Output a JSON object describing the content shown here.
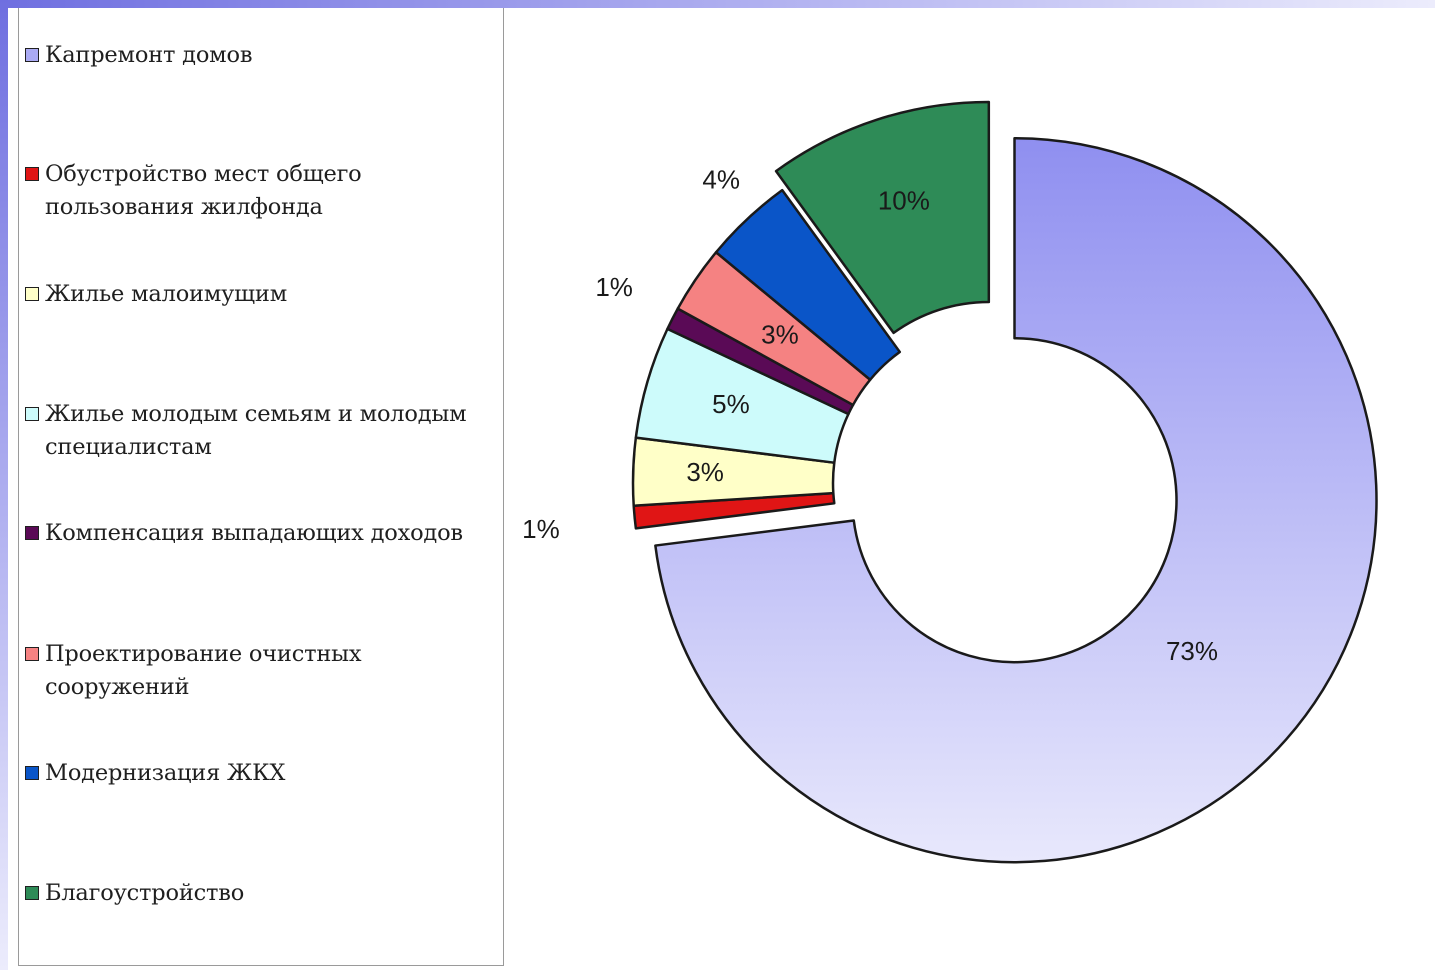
{
  "chart_data": {
    "type": "pie",
    "subtype": "doughnut",
    "legend_position": "left",
    "categories": [
      "Капремонт домов",
      "Обустройство мест общего пользования жилфонда",
      "Жилье малоимущим",
      "Жилье молодым семьям и молодым специалистам",
      "Компенсация выпадающих доходов",
      "Проектирование очистных сооружений",
      "Модернизация ЖКХ",
      "Благоустройство"
    ],
    "values": [
      73,
      1,
      3,
      5,
      1,
      3,
      4,
      10
    ],
    "data_labels": [
      "73%",
      "1%",
      "3%",
      "5%",
      "1%",
      "3%",
      "4%",
      "10%"
    ],
    "colors": [
      "#aaaaf3",
      "#e01515",
      "#ffffc8",
      "#cdfbfb",
      "#5a0a56",
      "#f58282",
      "#0a55c8",
      "#2e8b57"
    ],
    "exploded_slices": [
      0,
      7
    ]
  }
}
